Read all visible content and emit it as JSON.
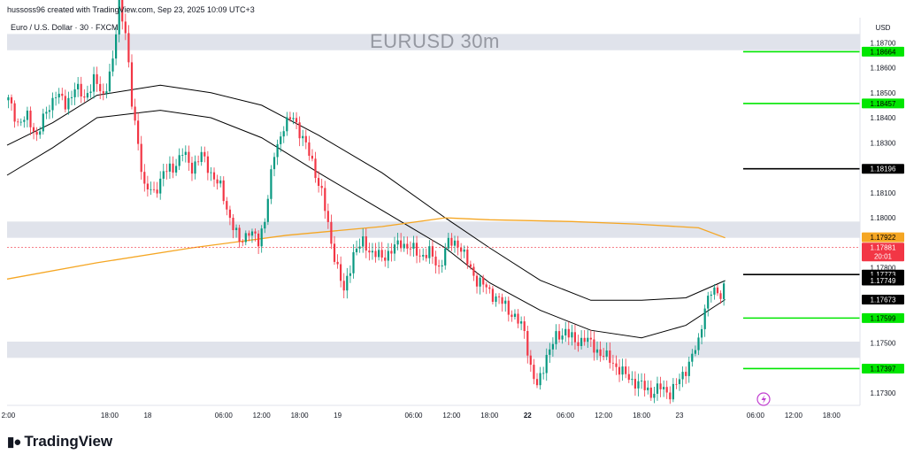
{
  "header": {
    "attribution": "hussoss96 created with TradingView.com, Sep 23, 2025 10:09 UTC+3",
    "symbol_line": "Euro / U.S. Dollar · 30 · FXCM"
  },
  "watermark": "EURUSD 30m",
  "brand": {
    "logo_icon": "tradingview-logo-icon",
    "name": "TradingView"
  },
  "chart_data": {
    "type": "candlestick",
    "title": "EURUSD 30m",
    "currency": "USD",
    "ylim": [
      1.1725,
      1.188
    ],
    "y_ticks": [
      "1.17300",
      "1.17500",
      "1.17800",
      "1.18000",
      "1.18100",
      "1.18300",
      "1.18400",
      "1.18500",
      "1.18600",
      "1.18700"
    ],
    "x_ticks": [
      "2:00",
      "18:00",
      "18",
      "06:00",
      "12:00",
      "18:00",
      "19",
      "06:00",
      "12:00",
      "18:00",
      "22",
      "06:00",
      "12:00",
      "18:00",
      "23",
      "06:00",
      "12:00",
      "18:00"
    ],
    "x_tick_hour_offsets": [
      -4,
      12,
      18,
      30,
      36,
      42,
      48,
      60,
      66,
      72,
      78,
      84,
      90,
      96,
      102,
      114,
      120,
      126
    ],
    "x_bold": [
      "22"
    ],
    "x_range_hours": [
      -4.2,
      130.5
    ],
    "last_bar_hour": 109.2,
    "zones": [
      {
        "low": 1.1867,
        "high": 1.18735
      },
      {
        "low": 1.1792,
        "high": 1.17985
      },
      {
        "low": 1.1744,
        "high": 1.17505
      }
    ],
    "levels": [
      {
        "value": 1.18664,
        "label": "1.18664",
        "kind": "target"
      },
      {
        "value": 1.18457,
        "label": "1.18457",
        "kind": "target"
      },
      {
        "value": 1.18196,
        "label": "1.18196",
        "kind": "key"
      },
      {
        "value": 1.17773,
        "label": "1.17773",
        "kind": "key"
      },
      {
        "value": 1.17599,
        "label": "1.17599",
        "kind": "target"
      },
      {
        "value": 1.17397,
        "label": "1.17397",
        "kind": "target"
      }
    ],
    "price_tags": [
      {
        "value": 1.17922,
        "label": "1.17922",
        "kind": "ma"
      },
      {
        "value": 1.17881,
        "label": "1.17881",
        "sublabel": "20:01",
        "kind": "last"
      },
      {
        "value": 1.17749,
        "label": "1.17749",
        "kind": "band"
      },
      {
        "value": 1.17673,
        "label": "1.17673",
        "kind": "band"
      }
    ],
    "close_anchors": [
      [
        -4.0,
        1.1847
      ],
      [
        -2.5,
        1.1838
      ],
      [
        -1.0,
        1.184
      ],
      [
        0.5,
        1.1833
      ],
      [
        2.0,
        1.1842
      ],
      [
        3.5,
        1.185
      ],
      [
        5.0,
        1.1845
      ],
      [
        6.5,
        1.1852
      ],
      [
        8.0,
        1.1848
      ],
      [
        9.5,
        1.1855
      ],
      [
        11.0,
        1.1849
      ],
      [
        12.5,
        1.1862
      ],
      [
        13.5,
        1.1886
      ],
      [
        14.5,
        1.1875
      ],
      [
        15.5,
        1.1845
      ],
      [
        16.5,
        1.183
      ],
      [
        17.5,
        1.1812
      ],
      [
        19.0,
        1.181
      ],
      [
        20.5,
        1.1818
      ],
      [
        22.0,
        1.182
      ],
      [
        23.5,
        1.1826
      ],
      [
        25.0,
        1.182
      ],
      [
        26.5,
        1.1825
      ],
      [
        28.0,
        1.1818
      ],
      [
        29.5,
        1.1812
      ],
      [
        31.0,
        1.18
      ],
      [
        32.5,
        1.179
      ],
      [
        34.0,
        1.1795
      ],
      [
        35.5,
        1.179
      ],
      [
        36.5,
        1.18
      ],
      [
        38.0,
        1.1825
      ],
      [
        39.5,
        1.1837
      ],
      [
        41.0,
        1.184
      ],
      [
        42.5,
        1.1832
      ],
      [
        44.0,
        1.1822
      ],
      [
        45.5,
        1.181
      ],
      [
        47.0,
        1.179
      ],
      [
        48.0,
        1.178
      ],
      [
        49.0,
        1.177
      ],
      [
        50.5,
        1.1786
      ],
      [
        52.0,
        1.179
      ],
      [
        53.5,
        1.1786
      ],
      [
        55.0,
        1.1784
      ],
      [
        56.5,
        1.1787
      ],
      [
        58.0,
        1.179
      ],
      [
        59.5,
        1.1788
      ],
      [
        61.0,
        1.1785
      ],
      [
        62.5,
        1.1786
      ],
      [
        64.0,
        1.178
      ],
      [
        65.5,
        1.179
      ],
      [
        67.0,
        1.179
      ],
      [
        68.5,
        1.1782
      ],
      [
        70.0,
        1.1775
      ],
      [
        71.5,
        1.1772
      ],
      [
        73.0,
        1.1768
      ],
      [
        74.5,
        1.1765
      ],
      [
        76.0,
        1.176
      ],
      [
        77.5,
        1.1755
      ],
      [
        78.5,
        1.174
      ],
      [
        79.5,
        1.1732
      ],
      [
        81.0,
        1.1745
      ],
      [
        82.5,
        1.1752
      ],
      [
        84.0,
        1.1755
      ],
      [
        85.5,
        1.175
      ],
      [
        87.0,
        1.1752
      ],
      [
        88.5,
        1.1748
      ],
      [
        90.0,
        1.1745
      ],
      [
        91.5,
        1.1742
      ],
      [
        93.0,
        1.1738
      ],
      [
        94.5,
        1.1735
      ],
      [
        96.0,
        1.1733
      ],
      [
        97.5,
        1.173
      ],
      [
        99.0,
        1.1732
      ],
      [
        100.5,
        1.173
      ],
      [
        102.0,
        1.1735
      ],
      [
        103.5,
        1.1742
      ],
      [
        105.0,
        1.175
      ],
      [
        106.0,
        1.1765
      ],
      [
        107.0,
        1.177
      ],
      [
        108.5,
        1.177
      ],
      [
        110.0,
        1.1778
      ],
      [
        111.5,
        1.1782
      ],
      [
        113.0,
        1.179
      ],
      [
        114.0,
        1.1782
      ],
      [
        115.0,
        1.1775
      ],
      [
        116.5,
        1.1772
      ],
      [
        118.0,
        1.1785
      ],
      [
        119.5,
        1.1795
      ],
      [
        121.0,
        1.18
      ],
      [
        122.5,
        1.1802
      ],
      [
        124.0,
        1.1798
      ],
      [
        125.5,
        1.18
      ],
      [
        127.0,
        1.1803
      ],
      [
        128.5,
        1.1802
      ],
      [
        130.0,
        1.1808
      ],
      [
        131.5,
        1.1815
      ],
      [
        133.0,
        1.1808
      ],
      [
        134.5,
        1.1805
      ],
      [
        136.0,
        1.18
      ],
      [
        137.5,
        1.1798
      ],
      [
        138.5,
        1.179
      ]
    ],
    "ma_points": [
      [
        -4.2,
        1.17755
      ],
      [
        10,
        1.1782
      ],
      [
        25,
        1.1788
      ],
      [
        40,
        1.1793
      ],
      [
        55,
        1.17965
      ],
      [
        65,
        1.18
      ],
      [
        72,
        1.17992
      ],
      [
        85,
        1.17985
      ],
      [
        95,
        1.17975
      ],
      [
        105,
        1.1796
      ],
      [
        109.2,
        1.1792
      ]
    ],
    "band_upper": [
      [
        -4.2,
        1.1829
      ],
      [
        3,
        1.1838
      ],
      [
        10,
        1.1849
      ],
      [
        20,
        1.1853
      ],
      [
        28,
        1.185
      ],
      [
        36,
        1.1845
      ],
      [
        45,
        1.1833
      ],
      [
        55,
        1.1818
      ],
      [
        65,
        1.18
      ],
      [
        72,
        1.1788
      ],
      [
        80,
        1.1775
      ],
      [
        88,
        1.1767
      ],
      [
        96,
        1.1767
      ],
      [
        103,
        1.1768
      ],
      [
        109.2,
        1.17749
      ]
    ],
    "band_lower": [
      [
        -4.2,
        1.1817
      ],
      [
        3,
        1.1828
      ],
      [
        10,
        1.184
      ],
      [
        20,
        1.1843
      ],
      [
        28,
        1.184
      ],
      [
        36,
        1.1832
      ],
      [
        45,
        1.1818
      ],
      [
        55,
        1.1803
      ],
      [
        65,
        1.1788
      ],
      [
        72,
        1.1774
      ],
      [
        80,
        1.1763
      ],
      [
        88,
        1.1755
      ],
      [
        96,
        1.1752
      ],
      [
        103,
        1.1757
      ],
      [
        109.2,
        1.17673
      ]
    ],
    "colors": {
      "up": "#089981",
      "down": "#f23645",
      "target": "#00e600",
      "key": "#000000",
      "ma": "#f5a623",
      "band": "#000000",
      "zone": "#e0e3eb",
      "last": "#f23645",
      "ma_tag": "#f5a623"
    },
    "axis_label": "USD"
  },
  "overlay": {
    "flash_icon": "lightning-icon"
  }
}
